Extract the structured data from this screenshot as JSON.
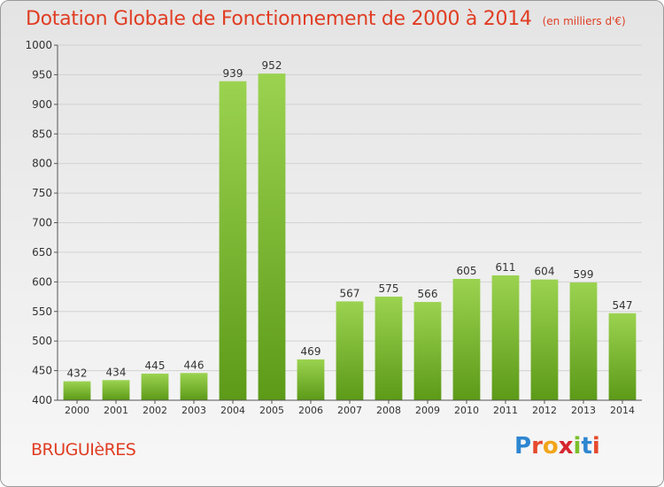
{
  "header": {
    "title": "Dotation Globale de Fonctionnement de 2000 à 2014",
    "subtitle": "(en milliers d'€)"
  },
  "footer": {
    "town": "BRUGUIèRES",
    "logo": {
      "letters": [
        "P",
        "r",
        "o",
        "x",
        "i",
        "t",
        "i"
      ],
      "colors": [
        "#2e86d1",
        "#e64a2e",
        "#f2a51a",
        "#d6262e",
        "#7cbf2c",
        "#2e86d1",
        "#e64a2e"
      ]
    }
  },
  "chart_data": {
    "type": "bar",
    "title": "Dotation Globale de Fonctionnement de 2000 à 2014",
    "subtitle": "(en milliers d'€)",
    "categories": [
      "2000",
      "2001",
      "2002",
      "2003",
      "2004",
      "2005",
      "2006",
      "2007",
      "2008",
      "2009",
      "2010",
      "2011",
      "2012",
      "2013",
      "2014"
    ],
    "values": [
      432,
      434,
      445,
      446,
      939,
      952,
      469,
      567,
      575,
      566,
      605,
      611,
      604,
      599,
      547
    ],
    "ylim": [
      400,
      1000
    ],
    "yticks": [
      400,
      450,
      500,
      550,
      600,
      650,
      700,
      750,
      800,
      850,
      900,
      950,
      1000
    ],
    "grid": true,
    "bar_color_top": "#9bd350",
    "bar_color_bottom": "#5c9a18"
  }
}
